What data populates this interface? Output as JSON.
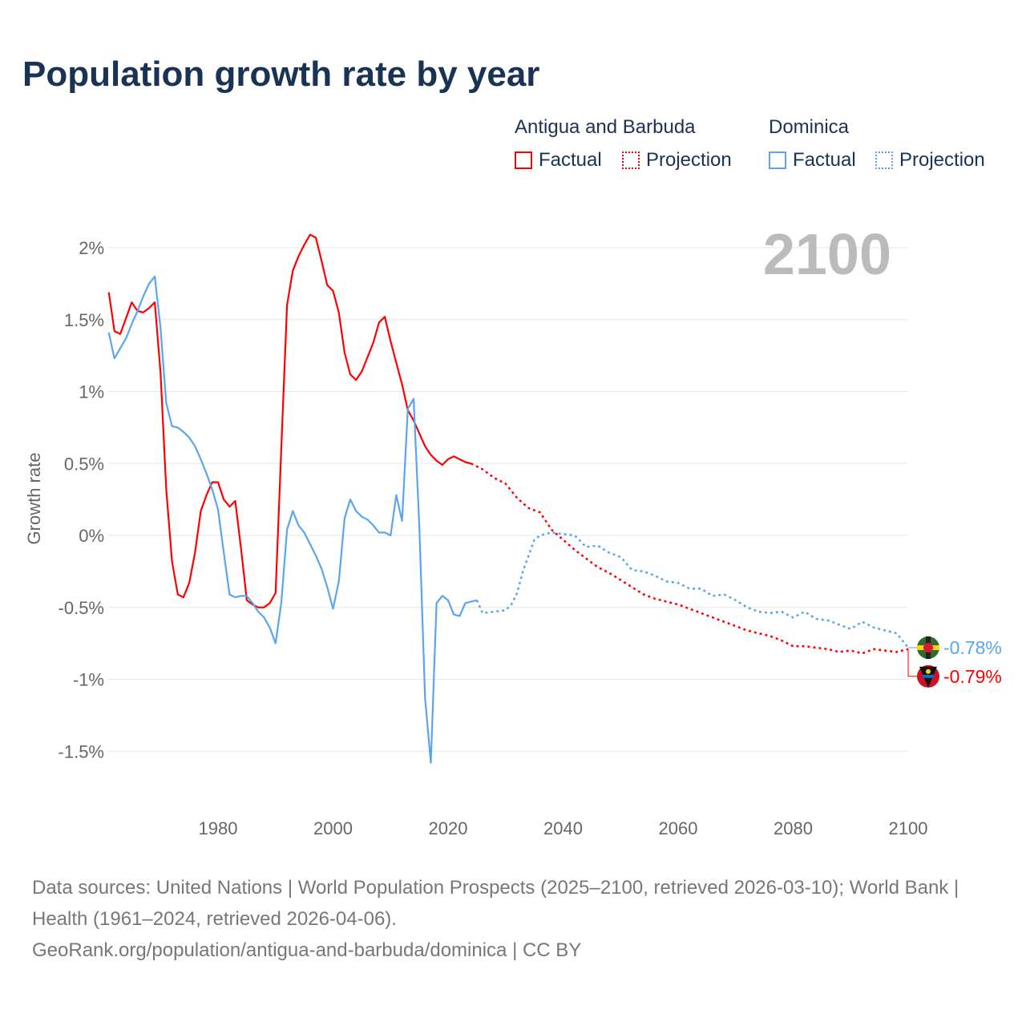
{
  "chart_data": {
    "type": "line",
    "title": "Population growth rate by year",
    "ylabel": "Growth rate",
    "xlabel": "",
    "xlim": [
      1961,
      2100
    ],
    "ylim": [
      -1.8,
      2.2
    ],
    "x_ticks": [
      1980,
      2000,
      2020,
      2040,
      2060,
      2080,
      2100
    ],
    "x_tick_labels": [
      "1980",
      "2000",
      "2020",
      "2040",
      "2060",
      "2080",
      "2100"
    ],
    "y_ticks": [
      2,
      1.5,
      1,
      0.5,
      0,
      -0.5,
      -1,
      -1.5
    ],
    "y_tick_labels": [
      "2%",
      "1.5%",
      "1%",
      "0.5%",
      "0%",
      "-0.5%",
      "-1%",
      "-1.5%"
    ],
    "year_overlay": "2100",
    "grid": true,
    "legend_placement": "top-right",
    "legend": {
      "groups": [
        {
          "name": "Antigua and Barbuda",
          "factual": "Factual",
          "projection": "Projection"
        },
        {
          "name": "Dominica",
          "factual": "Factual",
          "projection": "Projection"
        }
      ]
    },
    "series": [
      {
        "name": "Antigua and Barbuda",
        "color": "#ff0000",
        "end_label": "-0.79%",
        "factual": {
          "x": [
            1961,
            1962,
            1963,
            1964,
            1965,
            1966,
            1967,
            1968,
            1969,
            1970,
            1971,
            1972,
            1973,
            1974,
            1975,
            1976,
            1977,
            1978,
            1979,
            1980,
            1981,
            1982,
            1983,
            1984,
            1985,
            1986,
            1987,
            1988,
            1989,
            1990,
            1991,
            1992,
            1993,
            1994,
            1995,
            1996,
            1997,
            1998,
            1999,
            2000,
            2001,
            2002,
            2003,
            2004,
            2005,
            2006,
            2007,
            2008,
            2009,
            2010,
            2011,
            2012,
            2013,
            2014,
            2015,
            2016,
            2017,
            2018,
            2019,
            2020,
            2021,
            2022,
            2023,
            2024
          ],
          "y": [
            1.69,
            1.42,
            1.4,
            1.51,
            1.62,
            1.56,
            1.55,
            1.58,
            1.62,
            1.13,
            0.32,
            -0.18,
            -0.41,
            -0.43,
            -0.33,
            -0.12,
            0.17,
            0.28,
            0.37,
            0.37,
            0.25,
            0.2,
            0.24,
            -0.09,
            -0.45,
            -0.48,
            -0.5,
            -0.5,
            -0.47,
            -0.4,
            0.6,
            1.6,
            1.84,
            1.94,
            2.02,
            2.09,
            2.07,
            1.91,
            1.74,
            1.7,
            1.55,
            1.27,
            1.12,
            1.08,
            1.14,
            1.24,
            1.34,
            1.48,
            1.52,
            1.35,
            1.2,
            1.05,
            0.87,
            0.8,
            0.71,
            0.62,
            0.56,
            0.52,
            0.49,
            0.53,
            0.55,
            0.53,
            0.51,
            0.5
          ]
        },
        "projection": {
          "x": [
            2024,
            2026,
            2028,
            2030,
            2032,
            2034,
            2036,
            2038,
            2040,
            2042,
            2044,
            2046,
            2048,
            2050,
            2052,
            2054,
            2056,
            2058,
            2060,
            2062,
            2064,
            2066,
            2068,
            2070,
            2072,
            2074,
            2076,
            2078,
            2080,
            2082,
            2084,
            2086,
            2088,
            2090,
            2092,
            2094,
            2096,
            2098,
            2100
          ],
          "y": [
            0.5,
            0.46,
            0.4,
            0.36,
            0.26,
            0.19,
            0.16,
            0.04,
            -0.03,
            -0.1,
            -0.16,
            -0.22,
            -0.26,
            -0.31,
            -0.36,
            -0.41,
            -0.44,
            -0.46,
            -0.48,
            -0.51,
            -0.54,
            -0.57,
            -0.6,
            -0.63,
            -0.66,
            -0.68,
            -0.7,
            -0.73,
            -0.77,
            -0.77,
            -0.78,
            -0.79,
            -0.81,
            -0.8,
            -0.82,
            -0.79,
            -0.8,
            -0.81,
            -0.79
          ]
        }
      },
      {
        "name": "Dominica",
        "color": "#5aa5ef",
        "end_label": "-0.78%",
        "factual": {
          "x": [
            1961,
            1962,
            1963,
            1964,
            1965,
            1966,
            1967,
            1968,
            1969,
            1970,
            1971,
            1972,
            1973,
            1974,
            1975,
            1976,
            1977,
            1978,
            1979,
            1980,
            1981,
            1982,
            1983,
            1984,
            1985,
            1986,
            1987,
            1988,
            1989,
            1990,
            1991,
            1992,
            1993,
            1994,
            1995,
            1996,
            1997,
            1998,
            1999,
            2000,
            2001,
            2002,
            2003,
            2004,
            2005,
            2006,
            2007,
            2008,
            2009,
            2010,
            2011,
            2012,
            2013,
            2014,
            2015,
            2016,
            2017,
            2018,
            2019,
            2020,
            2021,
            2022,
            2023,
            2024,
            2025
          ],
          "y": [
            1.41,
            1.23,
            1.3,
            1.37,
            1.47,
            1.56,
            1.66,
            1.75,
            1.8,
            1.44,
            0.92,
            0.76,
            0.75,
            0.72,
            0.68,
            0.62,
            0.53,
            0.43,
            0.32,
            0.18,
            -0.12,
            -0.41,
            -0.43,
            -0.42,
            -0.42,
            -0.47,
            -0.53,
            -0.57,
            -0.64,
            -0.75,
            -0.47,
            0.04,
            0.17,
            0.07,
            0.02,
            -0.06,
            -0.14,
            -0.23,
            -0.36,
            -0.51,
            -0.32,
            0.12,
            0.25,
            0.17,
            0.13,
            0.11,
            0.07,
            0.02,
            0.02,
            0.0,
            0.28,
            0.1,
            0.88,
            0.95,
            0.07,
            -1.13,
            -1.58,
            -0.47,
            -0.42,
            -0.45,
            -0.55,
            -0.56,
            -0.47,
            -0.46,
            -0.45
          ]
        },
        "projection": {
          "x": [
            2025,
            2026,
            2028,
            2030,
            2031,
            2032,
            2033,
            2034,
            2035,
            2036,
            2038,
            2040,
            2042,
            2044,
            2046,
            2048,
            2050,
            2052,
            2054,
            2056,
            2058,
            2060,
            2062,
            2064,
            2066,
            2068,
            2070,
            2072,
            2074,
            2076,
            2078,
            2080,
            2082,
            2084,
            2086,
            2088,
            2090,
            2092,
            2094,
            2096,
            2098,
            2100
          ],
          "y": [
            -0.45,
            -0.54,
            -0.53,
            -0.52,
            -0.48,
            -0.4,
            -0.25,
            -0.14,
            -0.03,
            0.0,
            0.02,
            0.01,
            0.0,
            -0.08,
            -0.07,
            -0.12,
            -0.15,
            -0.24,
            -0.25,
            -0.28,
            -0.32,
            -0.33,
            -0.37,
            -0.37,
            -0.42,
            -0.41,
            -0.45,
            -0.5,
            -0.53,
            -0.54,
            -0.53,
            -0.57,
            -0.53,
            -0.58,
            -0.59,
            -0.62,
            -0.65,
            -0.6,
            -0.64,
            -0.66,
            -0.68,
            -0.78
          ]
        }
      }
    ]
  },
  "footer": {
    "sources": "Data sources: United Nations | World Population Prospects (2025–2100, retrieved 2026-03-10); World Bank | Health (1961–2024, retrieved 2026-04-06).",
    "url": "GeoRank.org/population/antigua-and-barbuda/dominica | CC BY"
  }
}
